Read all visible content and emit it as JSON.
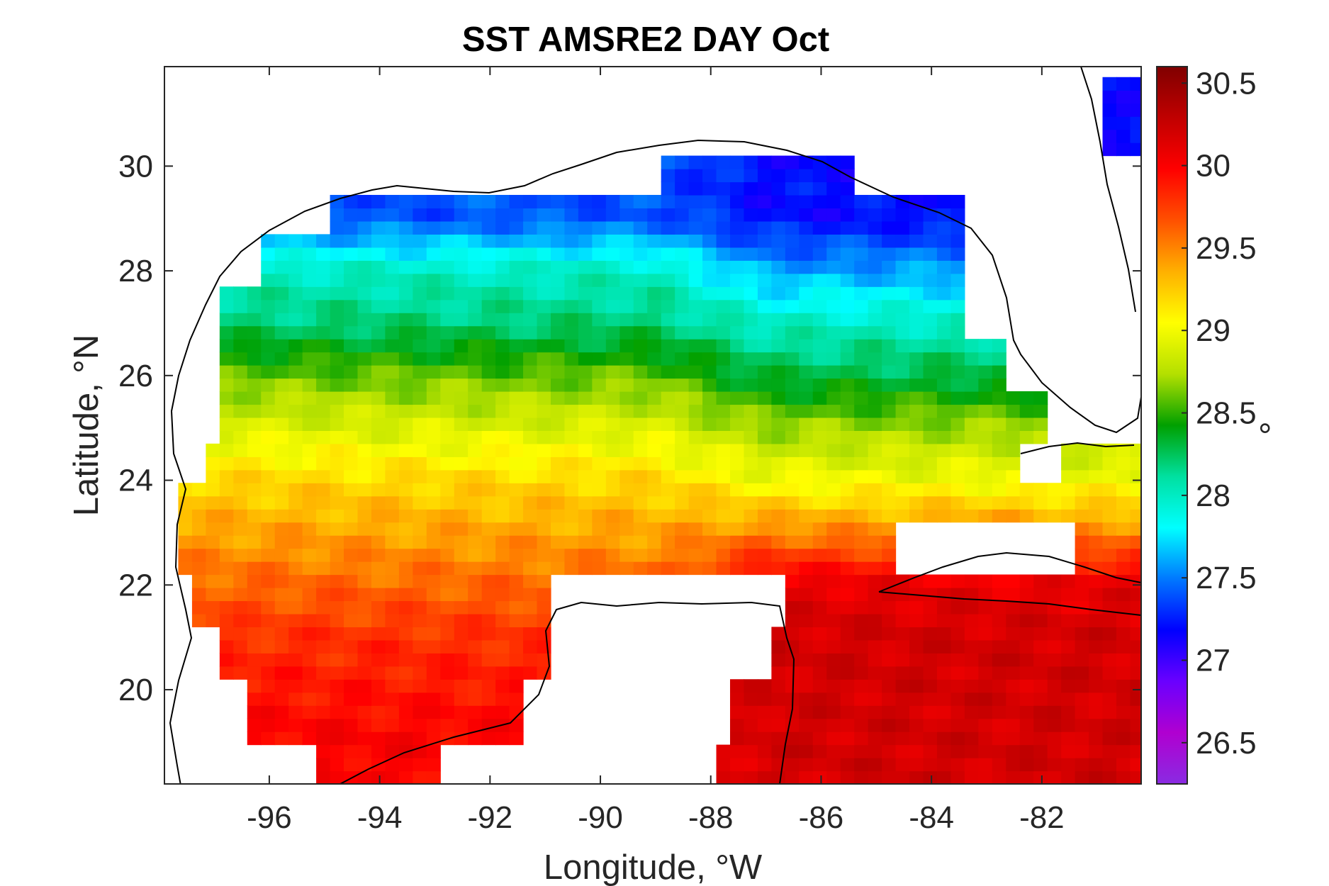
{
  "chart_data": {
    "type": "heatmap",
    "title": "SST AMSRE2 DAY Oct",
    "xlabel": "Longitude, °W",
    "ylabel": "Latitude, °N",
    "xlim": [
      -97.9,
      -80.2
    ],
    "ylim": [
      18.2,
      31.9
    ],
    "x_ticks": [
      -96,
      -94,
      -92,
      -90,
      -88,
      -86,
      -84,
      -82
    ],
    "x_tick_labels": [
      "-96",
      "-94",
      "-92",
      "-90",
      "-88",
      "-86",
      "-84",
      "-82"
    ],
    "y_ticks": [
      20,
      22,
      24,
      26,
      28,
      30
    ],
    "y_tick_labels": [
      "20",
      "22",
      "24",
      "26",
      "28",
      "30"
    ],
    "grid_resolution_deg": 0.25,
    "colorbar": {
      "label": "°",
      "range": [
        26.25,
        30.6
      ],
      "ticks": [
        26.5,
        27,
        27.5,
        28,
        28.5,
        29,
        29.5,
        30,
        30.5
      ],
      "tick_labels": [
        "26.5",
        "27",
        "27.5",
        "28",
        "28.5",
        "29",
        "29.5",
        "30",
        "30.5"
      ],
      "colors": [
        "#8a2be2",
        "#b000d0",
        "#6a00ff",
        "#0000ff",
        "#0078ff",
        "#00ffff",
        "#00e0a0",
        "#00a000",
        "#b4e000",
        "#ffff00",
        "#ffb000",
        "#ff5000",
        "#ff0000",
        "#c00000",
        "#800000"
      ]
    },
    "sst_by_latitude_band": [
      {
        "lat": 29,
        "west_of_88": 27.4,
        "east_of_88": 27.2
      },
      {
        "lat": 28,
        "west_of_88": 28.0,
        "east_of_88": 27.6
      },
      {
        "lat": 27,
        "west_of_88": 28.2,
        "east_of_88": 28.0
      },
      {
        "lat": 26,
        "west_of_88": 28.6,
        "east_of_88": 28.3
      },
      {
        "lat": 25,
        "west_of_88": 28.9,
        "east_of_88": 28.7
      },
      {
        "lat": 24,
        "west_of_88": 29.2,
        "east_of_88": 29.0
      },
      {
        "lat": 23,
        "west_of_88": 29.4,
        "east_of_88": 29.5
      },
      {
        "lat": 22,
        "west_of_88": 29.6,
        "east_of_88": 30.1
      },
      {
        "lat": 21,
        "west_of_88": 29.8,
        "east_of_88": 30.2
      },
      {
        "lat": 20,
        "west_of_88": 29.9,
        "east_of_88": 30.2
      },
      {
        "lat": 19,
        "west_of_88": 30.0,
        "east_of_88": 30.2
      }
    ]
  }
}
